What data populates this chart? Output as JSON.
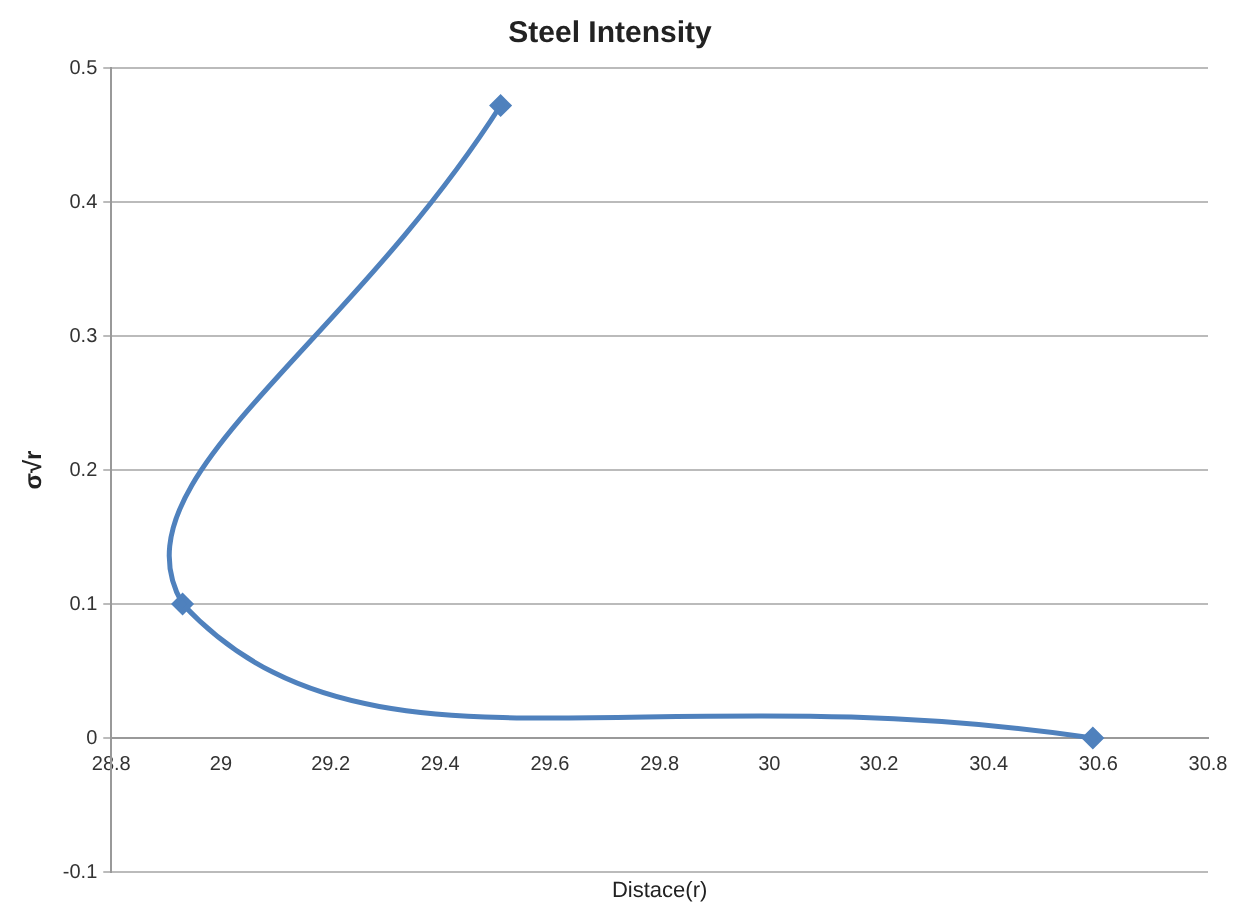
{
  "chart_data": {
    "type": "line",
    "title": "Steel Intensity",
    "xlabel": "Distace(r)",
    "ylabel": "σ√r",
    "x": [
      29.51,
      28.93,
      30.59
    ],
    "series": [
      {
        "color": "#4f81bd",
        "values": [
          0.472,
          0.1,
          0
        ]
      }
    ],
    "xlim": [
      28.8,
      30.8
    ],
    "xticks": [
      28.8,
      29,
      29.2,
      29.4,
      29.6,
      29.8,
      30,
      30.2,
      30.4,
      30.6,
      30.8
    ],
    "ylim": [
      -0.1,
      0.5
    ],
    "yticks": [
      -0.1,
      0,
      0.1,
      0.2,
      0.3,
      0.4,
      0.5
    ],
    "grid": "y",
    "legend": false,
    "marker": "diamond",
    "line_style": "solid"
  }
}
